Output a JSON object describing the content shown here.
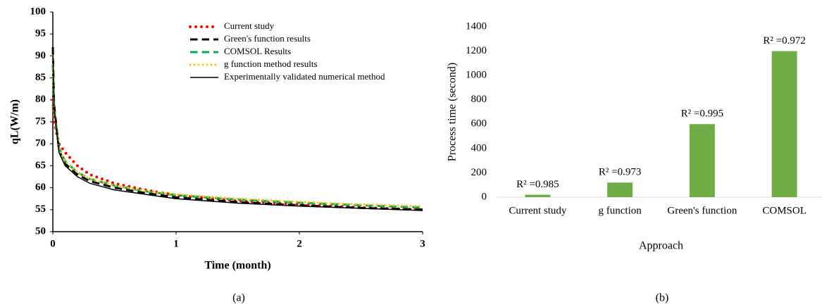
{
  "chart_data": [
    {
      "type": "line",
      "panel_label": "(a)",
      "xlabel": "Time (month)",
      "ylabel": "qL(W/m)",
      "x": [
        0,
        0.01,
        0.05,
        0.1,
        0.2,
        0.3,
        0.5,
        0.75,
        1,
        1.5,
        2,
        2.5,
        3
      ],
      "xlim": [
        0,
        3
      ],
      "xticks": [
        0,
        1,
        2,
        3
      ],
      "ylim": [
        50,
        100
      ],
      "yticks": [
        50,
        55,
        60,
        65,
        70,
        75,
        80,
        85,
        90,
        95,
        100
      ],
      "grid": false,
      "legend": "top-right",
      "series": [
        {
          "name": "Current study",
          "color": "#ff0000",
          "dash": "dotted",
          "width": 4,
          "values": [
            80,
            75,
            70,
            68,
            65,
            63,
            61,
            59.5,
            58.3,
            57,
            56.2,
            55.5,
            55
          ]
        },
        {
          "name": "Green's function results",
          "color": "#000000",
          "dash": "dashed",
          "width": 3,
          "values": [
            92,
            79,
            68.5,
            65.5,
            63,
            61.5,
            60,
            58.8,
            57.8,
            56.7,
            56,
            55.4,
            55
          ]
        },
        {
          "name": "COMSOL  Results",
          "color": "#00b050",
          "dash": "dashed",
          "width": 3,
          "values": [
            88,
            78,
            69,
            66,
            63.5,
            62,
            60.5,
            59.2,
            58.3,
            57.3,
            56.6,
            56,
            55.5
          ]
        },
        {
          "name": "g function method results",
          "color": "#ffc000",
          "dash": "dotted",
          "width": 3,
          "values": [
            90,
            77,
            68.5,
            66,
            63.5,
            62,
            60.5,
            59.3,
            58.5,
            57.5,
            56.8,
            56.2,
            55.8
          ]
        },
        {
          "name": "Experimentally validated numerical method",
          "color": "#000000",
          "dash": "solid",
          "width": 1.5,
          "values": [
            92,
            78,
            68,
            65,
            62.5,
            61,
            59.5,
            58.5,
            57.5,
            56.5,
            55.8,
            55.3,
            54.8
          ]
        }
      ]
    },
    {
      "type": "bar",
      "panel_label": "(b)",
      "xlabel": "Approach",
      "ylabel": "Process time (second)",
      "categories": [
        "Current study",
        "g function",
        "Green's function",
        "COMSOL"
      ],
      "values": [
        20,
        120,
        600,
        1200
      ],
      "color": "#70ad47",
      "annotations": [
        "R² =0.985",
        "R² =0.973",
        "R² =0.995",
        "R² =0.972"
      ],
      "ylim": [
        0,
        1400
      ],
      "yticks": [
        0,
        200,
        400,
        600,
        800,
        1000,
        1200,
        1400
      ],
      "grid": false
    }
  ]
}
